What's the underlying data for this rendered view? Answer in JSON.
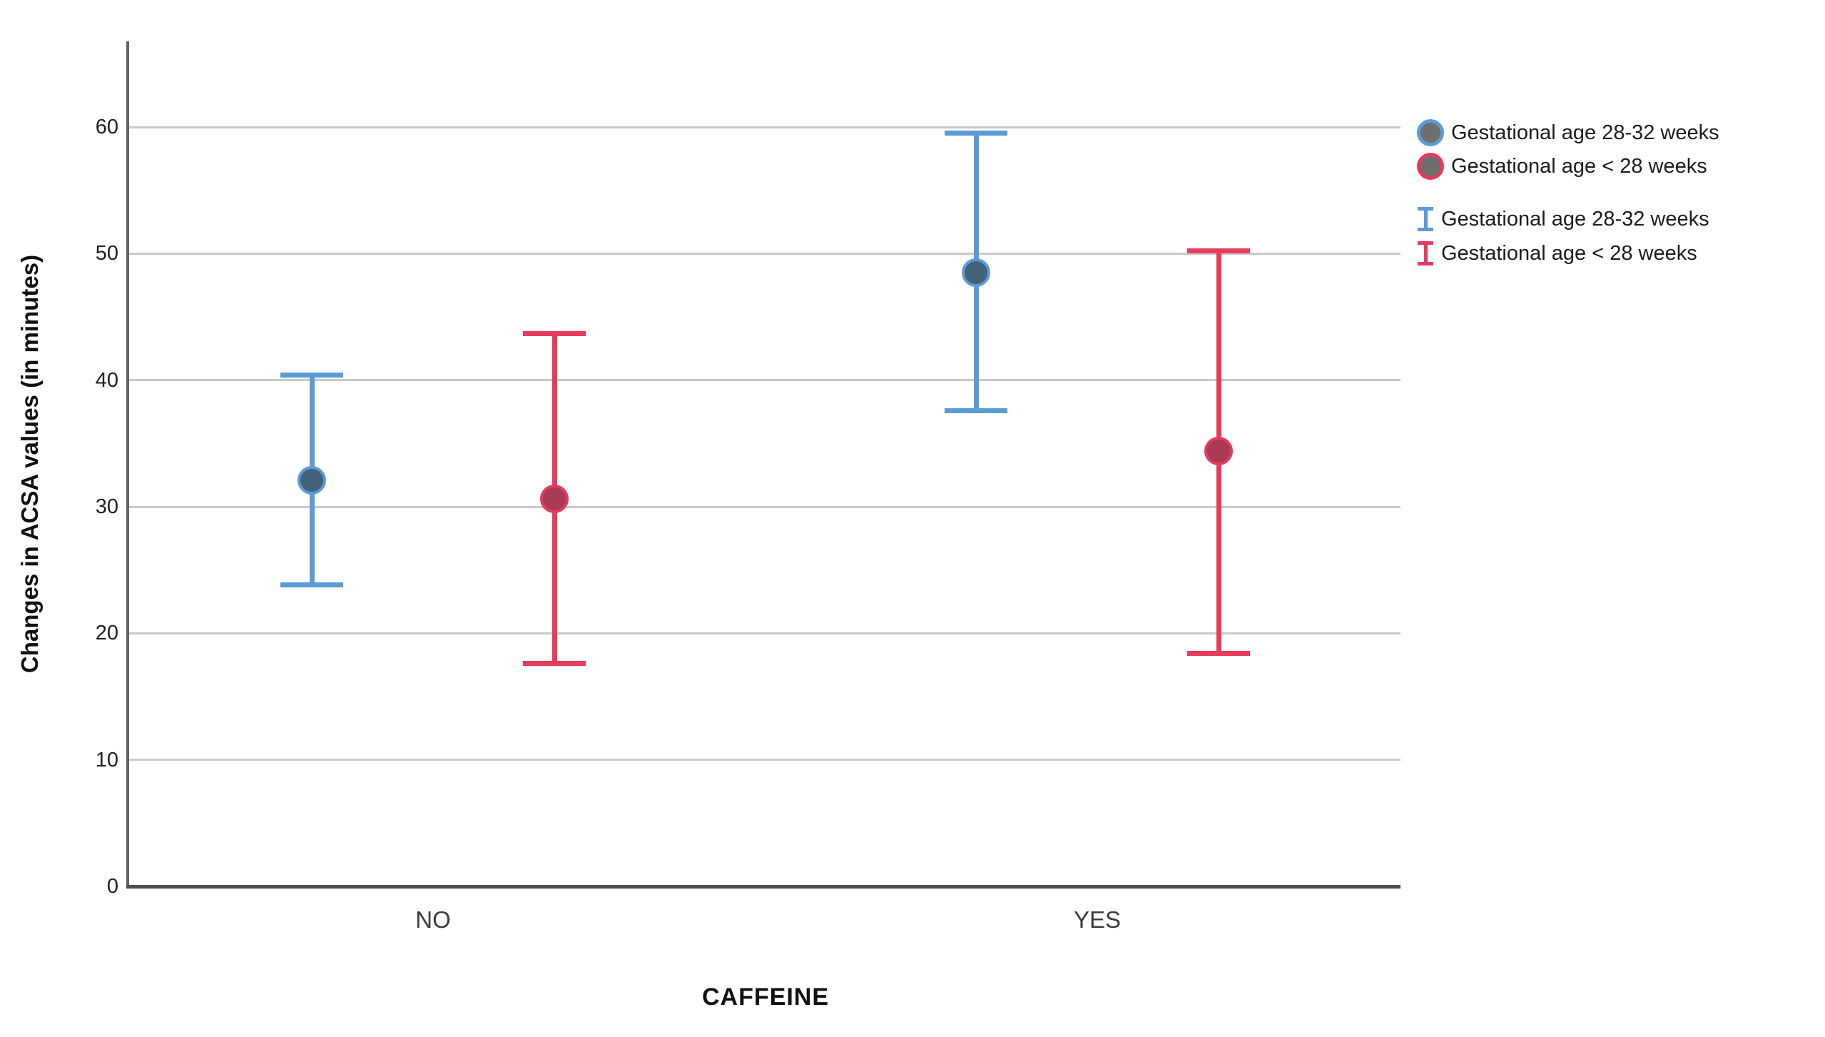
{
  "chart_data": {
    "type": "scatter",
    "error_bars": true,
    "title": "",
    "xlabel": "CAFFEINE",
    "ylabel": "Changes in ACSA values (in minutes)",
    "categories": [
      "NO",
      "YES"
    ],
    "y_ticks": [
      0,
      10,
      20,
      30,
      40,
      50,
      60
    ],
    "ylim": [
      0,
      67
    ],
    "grid": "horizontal",
    "series": [
      {
        "name": "Gestational age 28-32 weeks",
        "color": "#5b9bd5",
        "marker_fill": "#44617a",
        "points": [
          {
            "category": "NO",
            "mean": 32.1,
            "ci_low": 23.8,
            "ci_high": 40.4
          },
          {
            "category": "YES",
            "mean": 48.5,
            "ci_low": 37.6,
            "ci_high": 59.5
          }
        ]
      },
      {
        "name": "Gestational age < 28 weeks",
        "color": "#e73a5f",
        "marker_fill": "#a83a52",
        "points": [
          {
            "category": "NO",
            "mean": 30.6,
            "ci_low": 17.6,
            "ci_high": 43.7
          },
          {
            "category": "YES",
            "mean": 34.4,
            "ci_low": 18.4,
            "ci_high": 50.2
          }
        ]
      }
    ],
    "legend": {
      "marker_entries": [
        "Gestational age 28-32 weeks",
        "Gestational age < 28 weeks"
      ],
      "errorbar_entries": [
        "Gestational age 28-32 weeks",
        "Gestational age < 28 weeks"
      ],
      "marker_gray_fill": "#6f6f6f",
      "position": "right-top"
    },
    "colors": {
      "gridline": "#c9c9c9",
      "y_axis": "#636363",
      "x_axis": "#4d4d4d",
      "tick_text": "#1f1f1f",
      "category_text": "#3c3c3c"
    }
  }
}
